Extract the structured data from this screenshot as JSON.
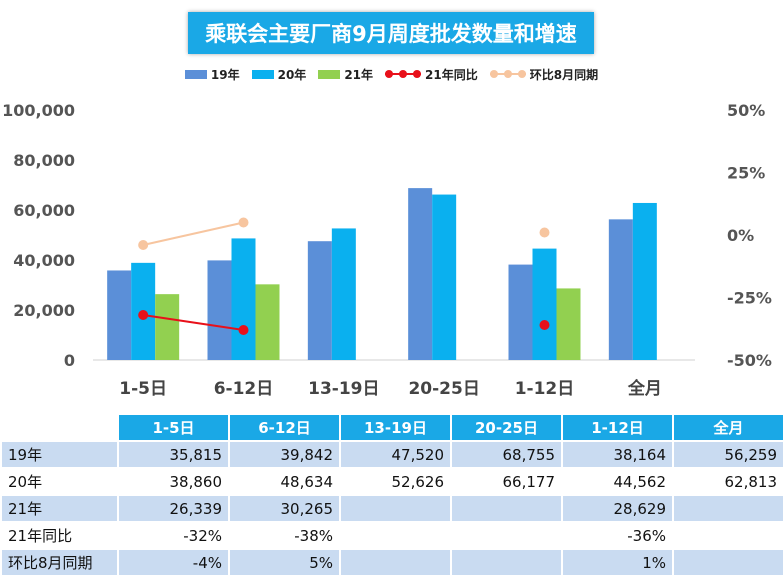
{
  "chart_data": {
    "type": "bar",
    "title": "乘联会主要厂商9月周度批发数量和增速",
    "categories": [
      "1-5日",
      "6-12日",
      "13-19日",
      "20-25日",
      "1-12日",
      "全月"
    ],
    "series": [
      {
        "name": "19年",
        "type": "bar",
        "color": "#5b8fd8",
        "values": [
          35815,
          39842,
          47520,
          68755,
          38164,
          56259
        ]
      },
      {
        "name": "20年",
        "type": "bar",
        "color": "#0ab0ef",
        "values": [
          38860,
          48634,
          52626,
          66177,
          44562,
          62813
        ]
      },
      {
        "name": "21年",
        "type": "bar",
        "color": "#92d050",
        "values": [
          26339,
          30265,
          null,
          null,
          28629,
          null
        ]
      },
      {
        "name": "21年同比",
        "type": "line",
        "axis": "right",
        "color": "#e8101a",
        "values": [
          -0.32,
          -0.38,
          null,
          null,
          -0.36,
          null
        ]
      },
      {
        "name": "环比8月同期",
        "type": "line",
        "axis": "right",
        "color": "#f7c59f",
        "values": [
          -0.04,
          0.05,
          null,
          null,
          0.01,
          null
        ]
      }
    ],
    "y_left": {
      "min": 0,
      "max": 100000,
      "ticks": [
        "0",
        "20,000",
        "40,000",
        "60,000",
        "80,000",
        "100,000"
      ]
    },
    "y_right": {
      "min": -0.5,
      "max": 0.5,
      "ticks": [
        "-50%",
        "-25%",
        "0%",
        "25%",
        "50%"
      ]
    },
    "legend_position": "top",
    "grid": false
  },
  "table": {
    "columns": [
      "1-5日",
      "6-12日",
      "13-19日",
      "20-25日",
      "1-12日",
      "全月"
    ],
    "rows": [
      {
        "label": "19年",
        "cells": [
          "35,815",
          "39,842",
          "47,520",
          "68,755",
          "38,164",
          "56,259"
        ]
      },
      {
        "label": "20年",
        "cells": [
          "38,860",
          "48,634",
          "52,626",
          "66,177",
          "44,562",
          "62,813"
        ]
      },
      {
        "label": "21年",
        "cells": [
          "26,339",
          "30,265",
          "",
          "",
          "28,629",
          ""
        ]
      },
      {
        "label": "21年同比",
        "cells": [
          "-32%",
          "-38%",
          "",
          "",
          "-36%",
          ""
        ]
      },
      {
        "label": "环比8月同期",
        "cells": [
          "-4%",
          "5%",
          "",
          "",
          "1%",
          ""
        ]
      }
    ]
  }
}
